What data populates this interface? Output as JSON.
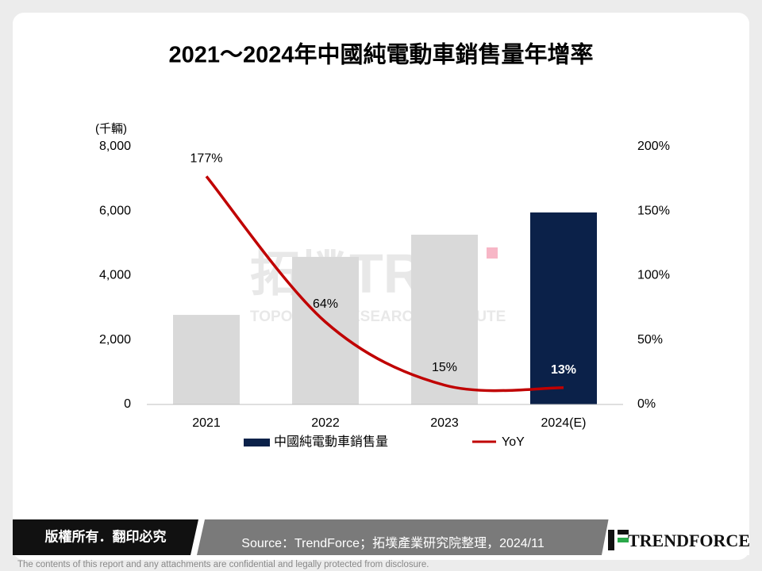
{
  "chart_data": {
    "type": "bar_line",
    "title": "2021～2024年中國純電動車銷售量年增率",
    "y_unit": "(千輛)",
    "categories": [
      "2021",
      "2022",
      "2023",
      "2024(E)"
    ],
    "series": [
      {
        "name": "中國純電動車銷售量",
        "type": "bar",
        "color": "#0b2149",
        "colors": [
          "#d9d9d9",
          "#d9d9d9",
          "#d9d9d9",
          "#0b2149"
        ],
        "values": [
          2780,
          4580,
          5270,
          5960
        ]
      },
      {
        "name": "YoY",
        "type": "line",
        "axis": "y2",
        "color": "#c00000",
        "values": [
          177,
          64,
          15,
          13
        ],
        "value_labels": [
          "177%",
          "64%",
          "15%",
          "13%"
        ],
        "value_label_colors": [
          "#000000",
          "#000000",
          "#000000",
          "#ffffff"
        ]
      }
    ],
    "ylim": [
      0,
      8000
    ],
    "yticks": [
      0,
      {
        "value": 2000,
        "label": "2,000"
      },
      {
        "value": 4000,
        "label": "4,000"
      },
      {
        "value": 6000,
        "label": "6,000"
      },
      {
        "value": 8000,
        "label": "8,000"
      }
    ],
    "y2lim": [
      0,
      200
    ],
    "y2ticks": [
      {
        "value": 0,
        "label": "0%"
      },
      {
        "value": 50,
        "label": "50%"
      },
      {
        "value": 100,
        "label": "100%"
      },
      {
        "value": 150,
        "label": "150%"
      },
      {
        "value": 200,
        "label": "200%"
      }
    ],
    "legend": "bottom",
    "watermark": [
      "拓墣",
      "TRI",
      "TOPOLOGY RESEARCH INSTITUTE"
    ]
  },
  "footer": {
    "rights": "版權所有．翻印必究",
    "source": "Source：TrendForce；拓墣產業研究院整理，2024/11",
    "logo": "TRENDFORCE",
    "disclaimer": "The contents of this report and any attachments are confidential and legally protected from disclosure."
  }
}
